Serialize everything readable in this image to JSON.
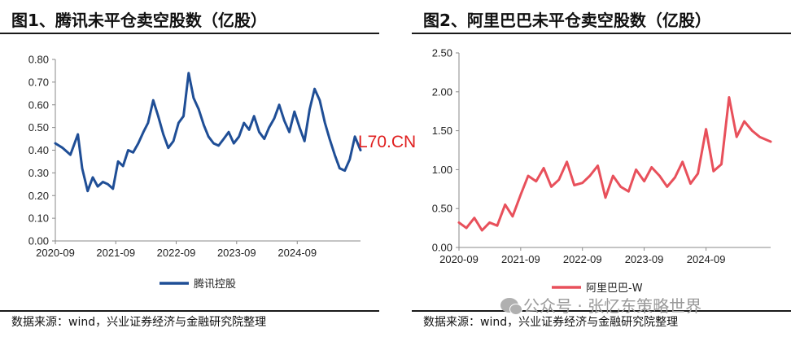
{
  "panels": {
    "left": {
      "title": "图1、腾讯未平仓卖空股数（亿股）",
      "source": "数据来源：wind，兴业证券经济与金融研究院整理"
    },
    "right": {
      "title": "图2、阿里巴巴未平仓卖空股数（亿股）",
      "source": "数据来源：wind，兴业证券经济与金融研究院整理"
    }
  },
  "overlay": {
    "stamp": "L70.CN",
    "watermark": "公众号 · 张忆东策略世界"
  },
  "colors": {
    "tencent": "#1f4e96",
    "alibaba": "#e8505b",
    "axis": "#8a8a8a",
    "stamp": "#e02020"
  },
  "chart_data": [
    {
      "type": "line",
      "title": "图1、腾讯未平仓卖空股数（亿股）",
      "xlabel": "",
      "ylabel": "",
      "x_ticks": [
        "2020-09",
        "2021-09",
        "2022-09",
        "2023-09",
        "2024-09"
      ],
      "y_ticks": [
        "0.00",
        "0.10",
        "0.20",
        "0.30",
        "0.40",
        "0.50",
        "0.60",
        "0.70",
        "0.80"
      ],
      "ylim": [
        0,
        0.8
      ],
      "xlim": [
        "2020-09-01",
        "2025-09-18"
      ],
      "grid": false,
      "legend": "bottom",
      "series": [
        {
          "name": "腾讯控股",
          "color": "#1f4e96",
          "x": [
            "2020-09-01",
            "2020-10-15",
            "2020-12-01",
            "2021-01-15",
            "2021-02-10",
            "2021-03-15",
            "2021-04-15",
            "2021-05-15",
            "2021-06-15",
            "2021-07-15",
            "2021-08-15",
            "2021-09-15",
            "2021-10-15",
            "2021-11-15",
            "2021-12-15",
            "2022-01-15",
            "2022-02-15",
            "2022-03-15",
            "2022-04-15",
            "2022-05-15",
            "2022-06-15",
            "2022-07-15",
            "2022-08-15",
            "2022-09-15",
            "2022-10-15",
            "2022-11-15",
            "2022-12-15",
            "2023-01-15",
            "2023-02-15",
            "2023-03-15",
            "2023-04-15",
            "2023-05-15",
            "2023-06-15",
            "2023-07-15",
            "2023-08-15",
            "2023-09-15",
            "2023-10-15",
            "2023-11-15",
            "2023-12-15",
            "2024-01-15",
            "2024-02-15",
            "2024-03-15",
            "2024-04-15",
            "2024-05-15",
            "2024-06-15",
            "2024-07-15",
            "2024-08-15",
            "2024-09-15",
            "2024-10-15",
            "2024-11-15",
            "2024-12-15",
            "2025-01-15",
            "2025-02-15",
            "2025-03-15",
            "2025-04-15",
            "2025-05-15",
            "2025-06-15",
            "2025-07-15",
            "2025-08-15",
            "2025-09-18"
          ],
          "values": [
            0.43,
            0.41,
            0.38,
            0.47,
            0.32,
            0.22,
            0.28,
            0.24,
            0.26,
            0.25,
            0.23,
            0.35,
            0.33,
            0.4,
            0.39,
            0.43,
            0.48,
            0.52,
            0.62,
            0.55,
            0.47,
            0.41,
            0.44,
            0.52,
            0.55,
            0.74,
            0.63,
            0.58,
            0.51,
            0.46,
            0.43,
            0.42,
            0.45,
            0.48,
            0.43,
            0.46,
            0.52,
            0.49,
            0.55,
            0.48,
            0.45,
            0.5,
            0.54,
            0.6,
            0.53,
            0.48,
            0.57,
            0.5,
            0.44,
            0.58,
            0.67,
            0.62,
            0.52,
            0.45,
            0.38,
            0.32,
            0.31,
            0.36,
            0.46,
            0.4
          ]
        }
      ]
    },
    {
      "type": "line",
      "title": "图2、阿里巴巴未平仓卖空股数（亿股）",
      "xlabel": "",
      "ylabel": "",
      "x_ticks": [
        "2020-09",
        "2021-09",
        "2022-09",
        "2023-09",
        "2024-09"
      ],
      "y_ticks": [
        "0.00",
        "0.50",
        "1.00",
        "1.50",
        "2.00",
        "2.50"
      ],
      "ylim": [
        0,
        2.5
      ],
      "xlim": [
        "2020-09-01",
        "2025-09-18"
      ],
      "grid": false,
      "legend": "bottom",
      "series": [
        {
          "name": "阿里巴巴-W",
          "color": "#e8505b",
          "x": [
            "2020-09-01",
            "2020-10-15",
            "2020-12-01",
            "2021-01-15",
            "2021-03-01",
            "2021-04-15",
            "2021-06-01",
            "2021-07-15",
            "2021-09-01",
            "2021-10-15",
            "2021-12-01",
            "2022-01-15",
            "2022-03-01",
            "2022-04-15",
            "2022-06-01",
            "2022-07-15",
            "2022-09-01",
            "2022-10-15",
            "2022-12-01",
            "2023-01-15",
            "2023-03-01",
            "2023-04-15",
            "2023-06-01",
            "2023-07-15",
            "2023-09-01",
            "2023-10-15",
            "2023-12-01",
            "2024-01-15",
            "2024-03-01",
            "2024-04-15",
            "2024-06-01",
            "2024-07-15",
            "2024-09-01",
            "2024-10-15",
            "2024-12-01",
            "2025-01-15",
            "2025-03-01",
            "2025-04-15",
            "2025-06-01",
            "2025-07-15",
            "2025-09-18"
          ],
          "values": [
            0.32,
            0.25,
            0.38,
            0.22,
            0.32,
            0.28,
            0.55,
            0.4,
            0.68,
            0.92,
            0.85,
            1.02,
            0.78,
            0.87,
            1.1,
            0.8,
            0.83,
            0.92,
            1.05,
            0.64,
            0.92,
            0.78,
            0.72,
            1.0,
            0.85,
            1.03,
            0.92,
            0.78,
            0.9,
            1.1,
            0.82,
            0.95,
            1.52,
            0.98,
            1.07,
            1.93,
            1.42,
            1.62,
            1.5,
            1.42,
            1.36
          ]
        }
      ]
    }
  ]
}
